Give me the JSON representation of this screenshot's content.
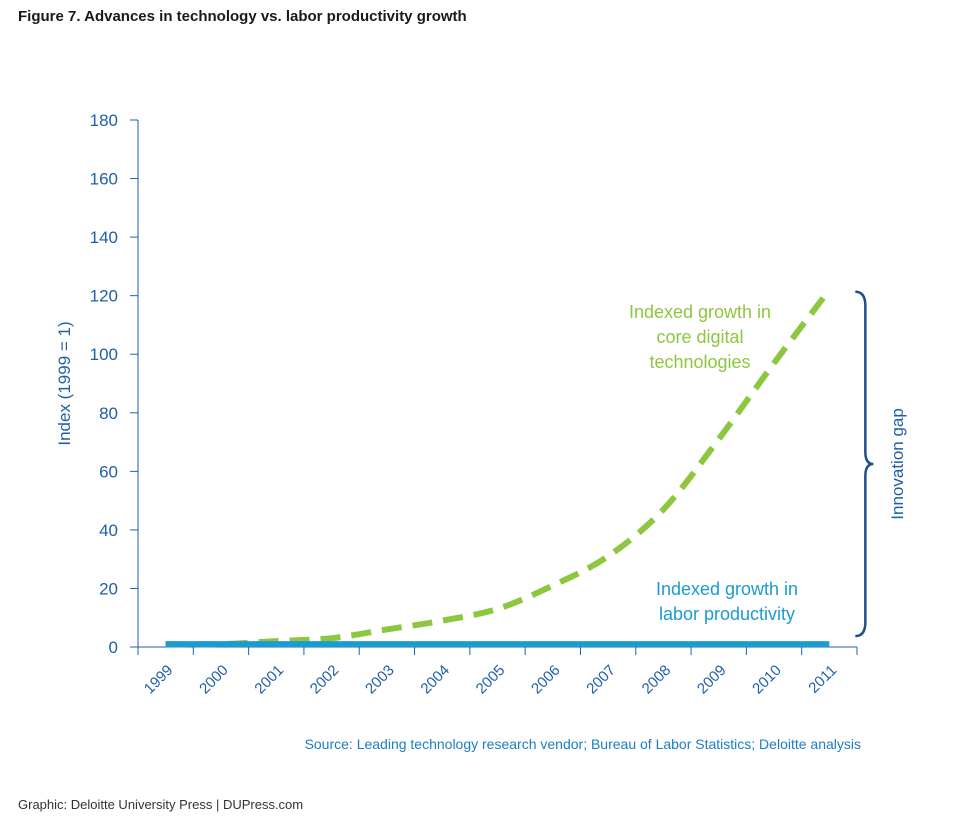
{
  "header": {
    "title": "Figure 7. Advances in technology vs. labor productivity growth"
  },
  "footer": {
    "source": "Source: Leading technology research vendor; Bureau of Labor Statistics; Deloitte analysis",
    "credit": "Graphic: Deloitte University Press | DUPress.com"
  },
  "colors": {
    "tech": "#8dc63f",
    "labor": "#1b9bd1",
    "axis": "#1f5fa8",
    "brace": "#1f4e8c"
  },
  "chart_data": {
    "type": "line",
    "ylabel": "Index (1999 = 1)",
    "xlabel": "",
    "ylim": [
      0,
      180
    ],
    "yticks": [
      0,
      20,
      40,
      60,
      80,
      100,
      120,
      140,
      160,
      180
    ],
    "x": [
      "1999",
      "2000",
      "2001",
      "2002",
      "2003",
      "2004",
      "2005",
      "2006",
      "2007",
      "2008",
      "2009",
      "2010",
      "2011"
    ],
    "grid": false,
    "series": [
      {
        "name": "Indexed growth in core digital technologies",
        "style": "dashed",
        "values": [
          1,
          1,
          2,
          3,
          6,
          9,
          13,
          21,
          31,
          47,
          71,
          97,
          122
        ]
      },
      {
        "name": "Indexed growth in labor productivity",
        "style": "solid",
        "values": [
          1,
          1,
          1,
          1,
          1,
          1,
          1,
          1,
          1,
          1,
          1,
          1,
          1
        ]
      }
    ],
    "annotations": {
      "tech_label": [
        "Indexed growth in",
        "core digital",
        "technologies"
      ],
      "labor_label": [
        "Indexed growth in",
        "labor productivity"
      ],
      "gap_label": "Innovation gap"
    }
  }
}
